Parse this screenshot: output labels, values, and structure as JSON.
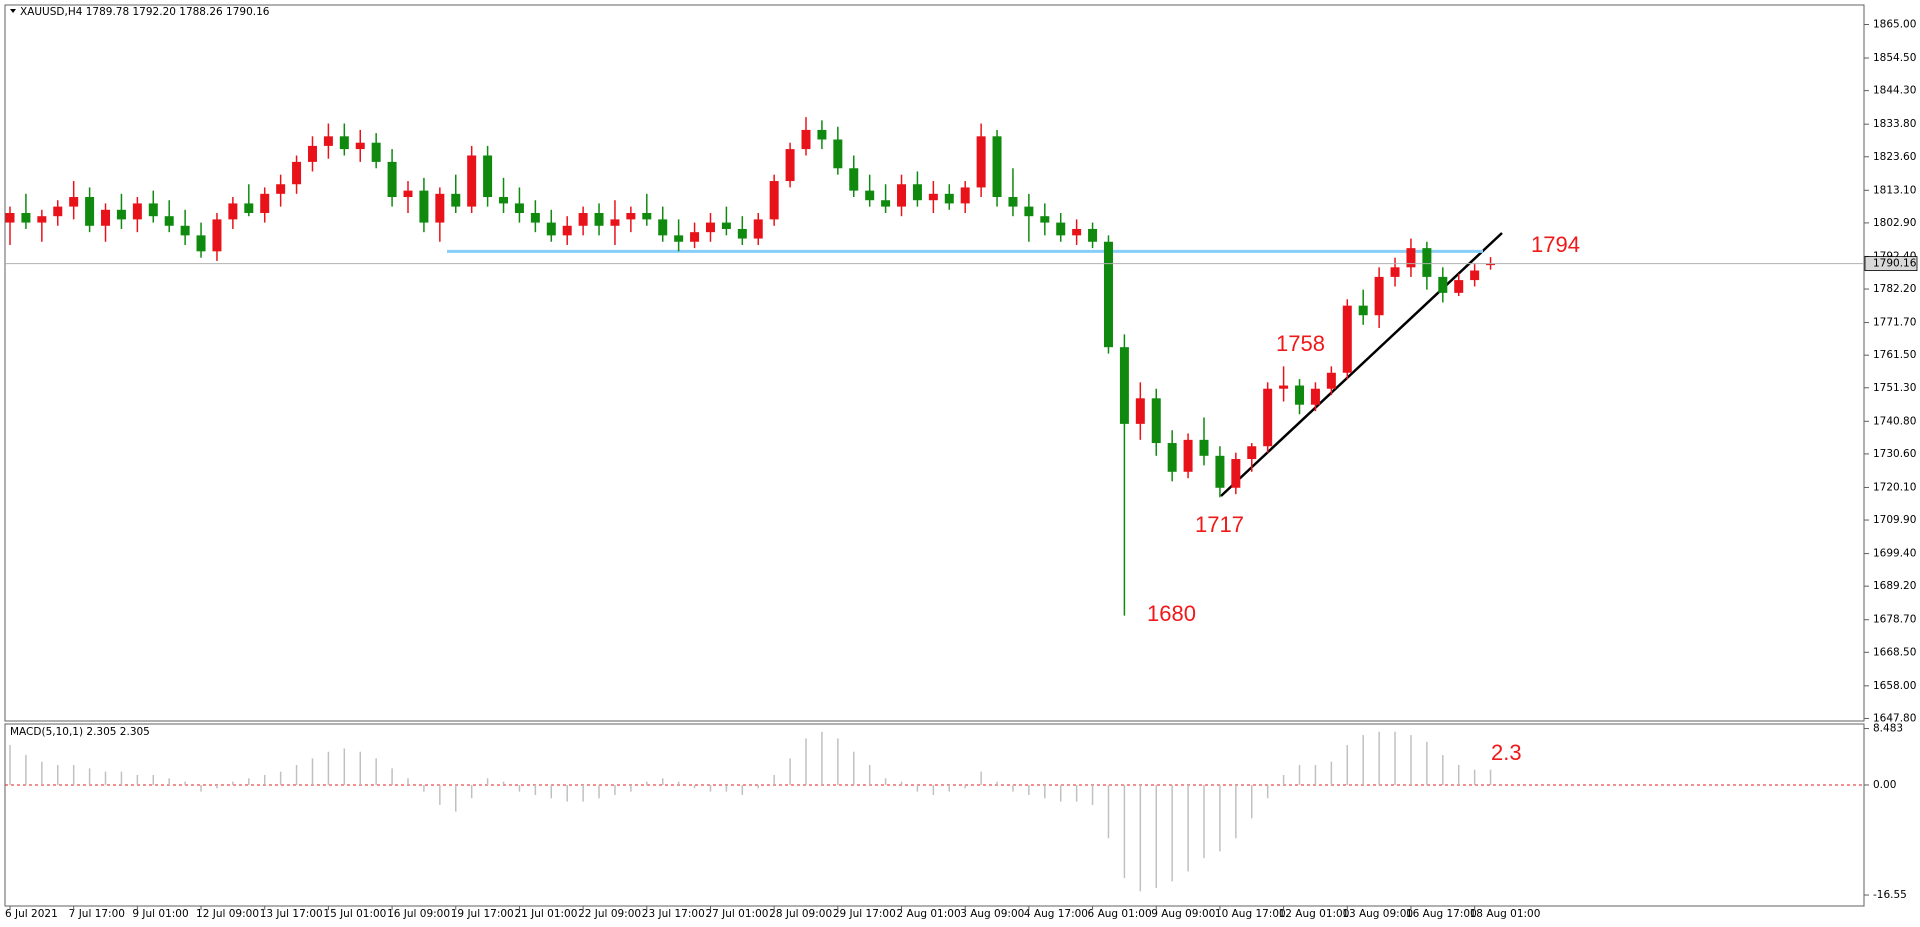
{
  "chart_data": [
    {
      "type": "candlestick",
      "title": "XAUUSD,H4  1789.78 1792.20 1788.26 1790.16",
      "categories": [
        "6 Jul 2021",
        null,
        null,
        null,
        "7 Jul 17:00",
        null,
        null,
        null,
        "9 Jul 01:00",
        null,
        null,
        null,
        "12 Jul 09:00",
        null,
        null,
        null,
        "13 Jul 17:00",
        null,
        null,
        null,
        "15 Jul 01:00",
        null,
        null,
        null,
        "16 Jul 09:00",
        null,
        null,
        null,
        "19 Jul 17:00",
        null,
        null,
        null,
        "21 Jul 01:00",
        null,
        null,
        null,
        "22 Jul 09:00",
        null,
        null,
        null,
        "23 Jul 17:00",
        null,
        null,
        null,
        "27 Jul 01:00",
        null,
        null,
        null,
        "28 Jul 09:00",
        null,
        null,
        null,
        "29 Jul 17:00",
        null,
        null,
        null,
        "2 Aug 01:00",
        null,
        null,
        null,
        "3 Aug 09:00",
        null,
        null,
        null,
        "4 Aug 17:00",
        null,
        null,
        null,
        "6 Aug 01:00",
        null,
        null,
        null,
        "9 Aug 09:00",
        null,
        null,
        null,
        "10 Aug 17:00",
        null,
        null,
        null,
        "12 Aug 01:00",
        null,
        null,
        null,
        "13 Aug 09:00",
        null,
        null,
        null,
        "16 Aug 17:00",
        null,
        null,
        null,
        "18 Aug 01:00",
        null
      ],
      "open": [
        1803,
        1806,
        1803,
        1805,
        1808,
        1811,
        1802,
        1807,
        1804,
        1809,
        1805,
        1802,
        1799,
        1794,
        1804,
        1809,
        1806,
        1812,
        1815,
        1822,
        1827,
        1830,
        1826,
        1828,
        1822,
        1811,
        1813,
        1803,
        1812,
        1808,
        1824,
        1811,
        1809,
        1806,
        1803,
        1799,
        1802,
        1806,
        1802,
        1804,
        1806,
        1804,
        1799,
        1797,
        1800,
        1803,
        1801,
        1798,
        1804,
        1816,
        1826,
        1832,
        1829,
        1820,
        1813,
        1810,
        1808,
        1815,
        1810,
        1812,
        1809,
        1814,
        1830,
        1811,
        1808,
        1805,
        1803,
        1799,
        1801,
        1797,
        1764,
        1740,
        1748,
        1734,
        1725,
        1735,
        1730,
        1720,
        1729,
        1733,
        1751,
        1752,
        1746,
        1751,
        1756,
        1777,
        1774,
        1786,
        1789,
        1795,
        1786,
        1781,
        1785,
        1789.78
      ],
      "high": [
        1808,
        1812,
        1807,
        1810,
        1816,
        1814,
        1809,
        1812,
        1811,
        1813,
        1810,
        1807,
        1803,
        1806,
        1811,
        1815,
        1814,
        1818,
        1824,
        1830,
        1834,
        1834,
        1832,
        1831,
        1826,
        1816,
        1817,
        1814,
        1818,
        1827,
        1827,
        1817,
        1814,
        1810,
        1807,
        1805,
        1808,
        1809,
        1810,
        1808,
        1812,
        1808,
        1804,
        1803,
        1806,
        1808,
        1805,
        1806,
        1818,
        1828,
        1836,
        1835,
        1833,
        1824,
        1818,
        1815,
        1818,
        1819,
        1816,
        1815,
        1816,
        1834,
        1832,
        1820,
        1812,
        1809,
        1806,
        1804,
        1803,
        1799,
        1768,
        1753,
        1751,
        1738,
        1737,
        1742,
        1733,
        1731,
        1734,
        1753,
        1758,
        1754,
        1753,
        1758,
        1779,
        1782,
        1789,
        1792,
        1798,
        1797,
        1789,
        1787,
        1790,
        1792.2
      ],
      "low": [
        1796,
        1801,
        1797,
        1802,
        1804,
        1800,
        1797,
        1801,
        1800,
        1803,
        1800,
        1796,
        1792,
        1791,
        1801,
        1805,
        1803,
        1808,
        1812,
        1819,
        1823,
        1824,
        1822,
        1820,
        1808,
        1806,
        1800,
        1797,
        1806,
        1806,
        1808,
        1806,
        1803,
        1800,
        1797,
        1796,
        1799,
        1799,
        1796,
        1800,
        1802,
        1797,
        1794,
        1795,
        1797,
        1799,
        1796,
        1796,
        1802,
        1814,
        1824,
        1826,
        1818,
        1811,
        1808,
        1806,
        1805,
        1808,
        1806,
        1807,
        1806,
        1811,
        1808,
        1805,
        1797,
        1799,
        1797,
        1796,
        1795,
        1762,
        1680,
        1735,
        1730,
        1722,
        1723,
        1727,
        1717,
        1718,
        1725,
        1731,
        1747,
        1743,
        1744,
        1749,
        1754,
        1771,
        1770,
        1783,
        1786,
        1782,
        1778,
        1780,
        1783,
        1788.26
      ],
      "close": [
        1806,
        1803,
        1805,
        1808,
        1811,
        1802,
        1807,
        1804,
        1809,
        1805,
        1802,
        1799,
        1794,
        1804,
        1809,
        1806,
        1812,
        1815,
        1822,
        1827,
        1830,
        1826,
        1828,
        1822,
        1811,
        1813,
        1803,
        1812,
        1808,
        1824,
        1811,
        1809,
        1806,
        1803,
        1799,
        1802,
        1806,
        1802,
        1804,
        1806,
        1804,
        1799,
        1797,
        1800,
        1803,
        1801,
        1798,
        1804,
        1816,
        1826,
        1832,
        1829,
        1820,
        1813,
        1810,
        1808,
        1815,
        1810,
        1812,
        1809,
        1814,
        1830,
        1811,
        1808,
        1805,
        1803,
        1799,
        1801,
        1797,
        1764,
        1740,
        1748,
        1734,
        1725,
        1735,
        1730,
        1720,
        1729,
        1733,
        1751,
        1752,
        1746,
        1751,
        1756,
        1777,
        1774,
        1786,
        1789,
        1795,
        1786,
        1781,
        1785,
        1788,
        1790.16
      ],
      "up_color": "#e8131a",
      "down_color": "#0f8a0f",
      "ylim": [
        1647.0,
        1871.1
      ],
      "yticks": [
        {
          "value": 1865,
          "label": "1865.00"
        },
        {
          "value": 1854.5,
          "label": "1854.50"
        },
        {
          "value": 1844.3,
          "label": "1844.30"
        },
        {
          "value": 1833.8,
          "label": "1833.80"
        },
        {
          "value": 1823.6,
          "label": "1823.60"
        },
        {
          "value": 1813.1,
          "label": "1813.10"
        },
        {
          "value": 1802.9,
          "label": "1802.90"
        },
        {
          "value": 1792.4,
          "label": "1792.40"
        },
        {
          "value": 1782.2,
          "label": "1782.20"
        },
        {
          "value": 1771.7,
          "label": "1771.70"
        },
        {
          "value": 1761.5,
          "label": "1761.50"
        },
        {
          "value": 1751.3,
          "label": "1751.30"
        },
        {
          "value": 1740.8,
          "label": "1740.80"
        },
        {
          "value": 1730.6,
          "label": "1730.60"
        },
        {
          "value": 1720.1,
          "label": "1720.10"
        },
        {
          "value": 1709.9,
          "label": "1709.90"
        },
        {
          "value": 1699.4,
          "label": "1699.40"
        },
        {
          "value": 1689.2,
          "label": "1689.20"
        },
        {
          "value": 1678.7,
          "label": "1678.70"
        },
        {
          "value": 1668.5,
          "label": "1668.50"
        },
        {
          "value": 1658,
          "label": "1658.00"
        },
        {
          "value": 1647.8,
          "label": "1647.80"
        }
      ],
      "support_level": 1794,
      "support_color": "#87cefa",
      "annotations": [
        "1794",
        "1758",
        "1717",
        "1680"
      ]
    },
    {
      "type": "bar",
      "title": "MACD(5,10,1) 2.305 2.305",
      "values": [
        6,
        4.5,
        3.5,
        3,
        3,
        2.5,
        2,
        2,
        1.5,
        1.5,
        1,
        0.5,
        -1,
        -0.5,
        0.5,
        1,
        1.5,
        2,
        3,
        4,
        5,
        5.5,
        5,
        4,
        2.5,
        1,
        -1,
        -3,
        -4,
        -2,
        1,
        0.5,
        -1,
        -1.5,
        -2,
        -2.5,
        -2.5,
        -2,
        -1.5,
        -1,
        0.5,
        1,
        0.5,
        -0.5,
        -1,
        -1,
        -1.5,
        -0.5,
        1.5,
        4,
        7,
        8,
        7,
        5,
        3,
        1,
        0.5,
        -1,
        -1.5,
        -1,
        -0.5,
        2,
        0.5,
        -1,
        -1.5,
        -2,
        -2.5,
        -2.5,
        -3,
        -8,
        -14,
        -16,
        -15.5,
        -14.5,
        -13,
        -11,
        -10,
        -8,
        -5,
        -2,
        1.5,
        3,
        3,
        3.5,
        6,
        7.5,
        8,
        8,
        7.5,
        6.5,
        4.5,
        3,
        2.3,
        2.305
      ],
      "color": "#c0c0c0",
      "zero_line_color": "#e02020",
      "ylim": [
        -18.2,
        9.17
      ],
      "yticks": [
        8.483,
        {
          "value": 0,
          "label": "0.00"
        },
        -16.55
      ],
      "annotations": [
        "2.3"
      ]
    }
  ]
}
